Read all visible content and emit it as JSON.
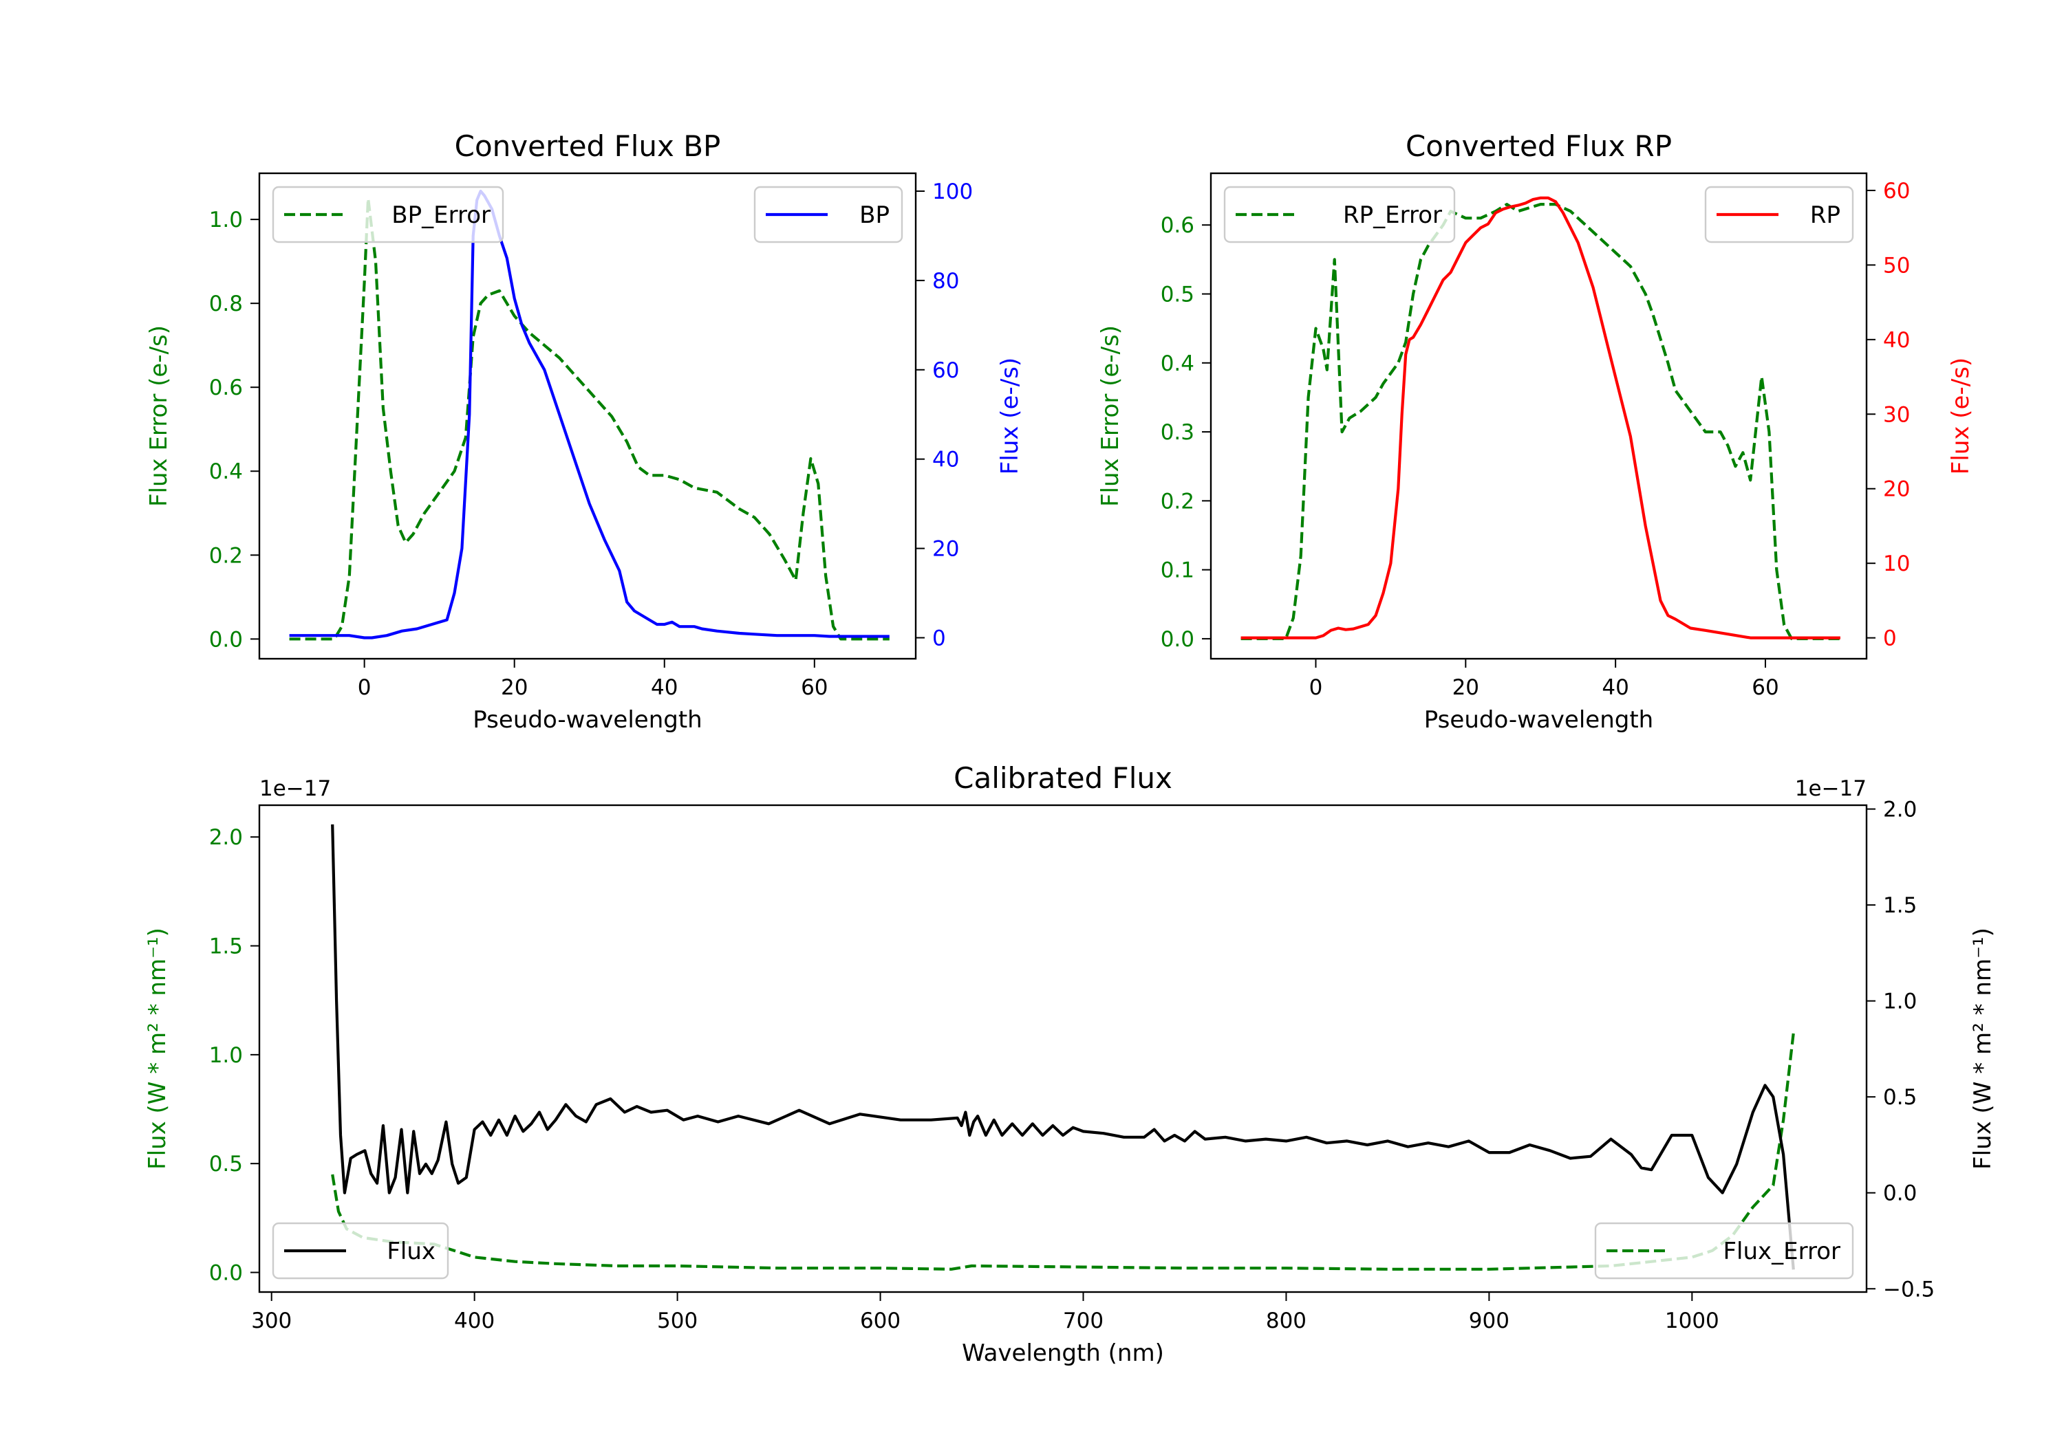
{
  "chart_data": [
    {
      "id": "bp",
      "type": "line",
      "title": "Converted Flux BP",
      "xlabel": "Pseudo-wavelength",
      "ylabel_left": "Flux Error (e-/s)",
      "ylabel_right": "Flux (e-/s)",
      "xlim": [
        -14,
        73.5
      ],
      "ylim_left": [
        -0.047,
        1.11
      ],
      "ylim_right": [
        -4.7,
        104
      ],
      "xticks": [
        0,
        20,
        40,
        60
      ],
      "xtick_labels": [
        "0",
        "20",
        "40",
        "60"
      ],
      "yticks_left": [
        0.0,
        0.2,
        0.4,
        0.6,
        0.8,
        1.0
      ],
      "ytick_labels_left": [
        "0.0",
        "0.2",
        "0.4",
        "0.6",
        "0.8",
        "1.0"
      ],
      "yticks_right": [
        0,
        20,
        40,
        60,
        80,
        100
      ],
      "ytick_labels_right": [
        "0",
        "20",
        "40",
        "60",
        "80",
        "100"
      ],
      "left_color": "#008000",
      "right_color": "#0000ff",
      "left_series": {
        "name": "BP_Error",
        "color": "#008000",
        "style": "dashed",
        "legend": "upper-left",
        "x": [
          -10,
          -4,
          -3,
          -2,
          -1,
          0,
          0.5,
          1.5,
          2.5,
          3.5,
          4.5,
          5.5,
          6.5,
          8,
          10,
          12,
          13.5,
          14.5,
          15.5,
          16.5,
          18,
          19,
          20,
          22,
          24,
          26,
          29,
          31,
          33,
          35,
          36.5,
          38,
          40,
          42,
          44,
          47,
          50,
          52,
          54,
          56,
          57.5,
          58.5,
          59.5,
          60.5,
          61.5,
          62.5,
          63.5,
          65,
          70
        ],
        "y": [
          0,
          0,
          0.03,
          0.15,
          0.5,
          0.85,
          1.05,
          0.9,
          0.55,
          0.4,
          0.27,
          0.23,
          0.25,
          0.3,
          0.35,
          0.4,
          0.48,
          0.72,
          0.8,
          0.82,
          0.83,
          0.8,
          0.77,
          0.73,
          0.7,
          0.67,
          0.61,
          0.57,
          0.53,
          0.47,
          0.41,
          0.39,
          0.39,
          0.38,
          0.36,
          0.35,
          0.31,
          0.29,
          0.25,
          0.19,
          0.14,
          0.3,
          0.43,
          0.37,
          0.15,
          0.03,
          0,
          0,
          0
        ]
      },
      "right_series": {
        "name": "BP",
        "color": "#0000ff",
        "style": "solid",
        "legend": "upper-right",
        "x": [
          -10,
          -5,
          -2,
          0,
          1,
          3,
          5,
          7,
          9,
          10,
          11,
          12,
          13,
          14,
          14.5,
          15,
          15.5,
          16,
          17,
          18,
          19,
          20,
          21,
          22,
          24,
          26,
          28,
          30,
          32,
          34,
          35,
          36,
          37,
          38,
          39,
          40,
          41,
          42,
          43,
          44,
          45,
          47,
          50,
          52,
          55,
          58,
          60,
          62,
          65,
          70
        ],
        "y": [
          0.5,
          0.5,
          0.5,
          0,
          0,
          0.5,
          1.5,
          2,
          3,
          3.5,
          4,
          10,
          20,
          50,
          90,
          98,
          100,
          99,
          96,
          90,
          85,
          76,
          70,
          66,
          60,
          50,
          40,
          30,
          22,
          15,
          8,
          6,
          5,
          4,
          3,
          3,
          3.5,
          2.5,
          2.5,
          2.5,
          2,
          1.5,
          1,
          0.8,
          0.5,
          0.5,
          0.5,
          0.3,
          0.3,
          0.3
        ]
      }
    },
    {
      "id": "rp",
      "type": "line",
      "title": "Converted Flux RP",
      "xlabel": "Pseudo-wavelength",
      "ylabel_left": "Flux Error (e-/s)",
      "ylabel_right": "Flux (e-/s)",
      "xlim": [
        -14,
        73.5
      ],
      "ylim_left": [
        -0.029,
        0.675
      ],
      "ylim_right": [
        -2.8,
        62.3
      ],
      "xticks": [
        0,
        20,
        40,
        60
      ],
      "xtick_labels": [
        "0",
        "20",
        "40",
        "60"
      ],
      "yticks_left": [
        0.0,
        0.1,
        0.2,
        0.3,
        0.4,
        0.5,
        0.6
      ],
      "ytick_labels_left": [
        "0.0",
        "0.1",
        "0.2",
        "0.3",
        "0.4",
        "0.5",
        "0.6"
      ],
      "yticks_right": [
        0,
        10,
        20,
        30,
        40,
        50,
        60
      ],
      "ytick_labels_right": [
        "0",
        "10",
        "20",
        "30",
        "40",
        "50",
        "60"
      ],
      "left_color": "#008000",
      "right_color": "#ff0000",
      "left_series": {
        "name": "RP_Error",
        "color": "#008000",
        "style": "dashed",
        "legend": "upper-left",
        "x": [
          -10,
          -4,
          -3,
          -2,
          -1,
          0,
          1,
          1.5,
          2.5,
          3.5,
          4.5,
          6,
          8,
          9,
          11,
          12,
          13,
          14,
          15,
          17,
          18,
          20,
          22,
          24,
          25.5,
          27,
          30,
          32,
          34,
          36,
          38,
          40,
          42,
          43,
          44,
          45,
          47,
          48,
          50,
          52,
          54,
          55,
          56,
          57,
          58,
          59.5,
          60.5,
          61.5,
          62.5,
          63.5,
          70
        ],
        "y": [
          0,
          0,
          0.03,
          0.12,
          0.35,
          0.45,
          0.42,
          0.39,
          0.55,
          0.3,
          0.32,
          0.33,
          0.35,
          0.37,
          0.4,
          0.43,
          0.5,
          0.55,
          0.57,
          0.6,
          0.62,
          0.61,
          0.61,
          0.62,
          0.63,
          0.62,
          0.63,
          0.63,
          0.62,
          0.6,
          0.58,
          0.56,
          0.54,
          0.52,
          0.5,
          0.47,
          0.4,
          0.36,
          0.33,
          0.3,
          0.3,
          0.28,
          0.25,
          0.27,
          0.23,
          0.38,
          0.3,
          0.1,
          0.02,
          0,
          0
        ]
      },
      "right_series": {
        "name": "RP",
        "color": "#ff0000",
        "style": "solid",
        "legend": "upper-right",
        "x": [
          -10,
          -5,
          0,
          1,
          2,
          3,
          4,
          5,
          7,
          8,
          9,
          10,
          11,
          11.5,
          12,
          12.5,
          13,
          14,
          15,
          16,
          17,
          18,
          19,
          20,
          21,
          22,
          23,
          24,
          25,
          26,
          27,
          28,
          29,
          30,
          31,
          32,
          33,
          34,
          35,
          36,
          37,
          38,
          39,
          40,
          41,
          42,
          43,
          44,
          45,
          46,
          47,
          48,
          50,
          52,
          55,
          58,
          60,
          65,
          70
        ],
        "y": [
          0,
          0,
          0,
          0.3,
          1,
          1.3,
          1.1,
          1.2,
          1.8,
          3,
          6,
          10,
          20,
          30,
          38,
          40,
          40.3,
          42,
          44,
          46,
          48,
          49,
          51,
          53,
          54,
          55,
          55.5,
          57,
          57.5,
          57.8,
          58,
          58.3,
          58.8,
          59,
          59,
          58.5,
          57,
          55,
          53,
          50,
          47,
          43,
          39,
          35,
          31,
          27,
          21,
          15,
          10,
          5,
          3,
          2.5,
          1.3,
          1,
          0.5,
          0,
          0,
          0,
          0
        ]
      }
    },
    {
      "id": "calibrated",
      "type": "line",
      "title": "Calibrated Flux",
      "xlabel": "Wavelength (nm)",
      "ylabel_left": "Flux (W * m² * nm⁻¹)",
      "ylabel_right": "Flux (W * m² * nm⁻¹)",
      "offset_left": "1e−17",
      "offset_right": "1e−17",
      "xlim": [
        294,
        1086
      ],
      "ylim_left": [
        -0.09,
        2.146
      ],
      "ylim_right": [
        -0.517,
        2.02
      ],
      "xticks": [
        300,
        400,
        500,
        600,
        700,
        800,
        900,
        1000
      ],
      "xtick_labels": [
        "300",
        "400",
        "500",
        "600",
        "700",
        "800",
        "900",
        "1000"
      ],
      "yticks_left": [
        0.0,
        0.5,
        1.0,
        1.5,
        2.0
      ],
      "ytick_labels_left": [
        "0.0",
        "0.5",
        "1.0",
        "1.5",
        "2.0"
      ],
      "yticks_right": [
        -0.5,
        0.0,
        0.5,
        1.0,
        1.5,
        2.0
      ],
      "ytick_labels_right": [
        "−0.5",
        "0.0",
        "0.5",
        "1.0",
        "1.5",
        "2.0"
      ],
      "left_color": "#008000",
      "right_color": "#000000",
      "left_series": {
        "name": "Flux_Error",
        "color": "#008000",
        "style": "dashed",
        "legend": "lower-right",
        "x": [
          330,
          333,
          337,
          345,
          360,
          380,
          390,
          400,
          420,
          440,
          470,
          500,
          550,
          600,
          635,
          645,
          700,
          750,
          800,
          850,
          900,
          940,
          960,
          980,
          1000,
          1010,
          1020,
          1030,
          1040,
          1045,
          1050
        ],
        "y": [
          0.45,
          0.28,
          0.2,
          0.16,
          0.14,
          0.13,
          0.1,
          0.07,
          0.05,
          0.04,
          0.03,
          0.03,
          0.02,
          0.02,
          0.015,
          0.03,
          0.025,
          0.02,
          0.02,
          0.015,
          0.015,
          0.025,
          0.03,
          0.05,
          0.07,
          0.1,
          0.17,
          0.3,
          0.4,
          0.7,
          1.1
        ]
      },
      "right_series": {
        "name": "Flux",
        "color": "#000000",
        "style": "solid",
        "legend": "lower-left",
        "x": [
          330,
          332,
          334,
          336,
          339,
          342,
          346,
          349,
          352,
          355,
          358,
          361,
          364,
          367,
          370,
          373,
          376,
          379,
          382,
          386,
          389,
          392,
          396,
          400,
          404,
          408,
          412,
          416,
          420,
          424,
          428,
          432,
          436,
          440,
          445,
          450,
          455,
          460,
          467,
          474,
          480,
          487,
          495,
          503,
          510,
          520,
          530,
          545,
          560,
          575,
          590,
          610,
          625,
          638,
          640,
          642,
          644,
          646,
          648,
          652,
          656,
          660,
          665,
          670,
          675,
          680,
          685,
          690,
          695,
          700,
          710,
          720,
          730,
          735,
          740,
          745,
          750,
          755,
          760,
          770,
          780,
          790,
          800,
          810,
          820,
          830,
          840,
          850,
          860,
          870,
          880,
          890,
          900,
          910,
          920,
          930,
          940,
          950,
          960,
          970,
          975,
          980,
          990,
          1000,
          1008,
          1015,
          1022,
          1030,
          1036,
          1040,
          1045,
          1050
        ],
        "y": [
          1.92,
          1.0,
          0.3,
          0.0,
          0.18,
          0.2,
          0.22,
          0.1,
          0.05,
          0.35,
          0.0,
          0.08,
          0.33,
          0.0,
          0.32,
          0.1,
          0.15,
          0.1,
          0.17,
          0.37,
          0.15,
          0.05,
          0.08,
          0.33,
          0.37,
          0.3,
          0.38,
          0.3,
          0.4,
          0.32,
          0.36,
          0.42,
          0.33,
          0.38,
          0.46,
          0.4,
          0.37,
          0.46,
          0.49,
          0.42,
          0.45,
          0.42,
          0.43,
          0.38,
          0.4,
          0.37,
          0.4,
          0.36,
          0.43,
          0.36,
          0.41,
          0.38,
          0.38,
          0.39,
          0.35,
          0.42,
          0.3,
          0.37,
          0.4,
          0.3,
          0.38,
          0.3,
          0.36,
          0.3,
          0.36,
          0.3,
          0.35,
          0.3,
          0.34,
          0.32,
          0.31,
          0.29,
          0.29,
          0.33,
          0.27,
          0.3,
          0.27,
          0.32,
          0.28,
          0.29,
          0.27,
          0.28,
          0.27,
          0.29,
          0.26,
          0.27,
          0.25,
          0.27,
          0.24,
          0.26,
          0.24,
          0.27,
          0.21,
          0.21,
          0.25,
          0.22,
          0.18,
          0.19,
          0.28,
          0.2,
          0.13,
          0.12,
          0.3,
          0.3,
          0.08,
          0.0,
          0.15,
          0.42,
          0.56,
          0.5,
          0.2,
          -0.4
        ]
      }
    }
  ]
}
